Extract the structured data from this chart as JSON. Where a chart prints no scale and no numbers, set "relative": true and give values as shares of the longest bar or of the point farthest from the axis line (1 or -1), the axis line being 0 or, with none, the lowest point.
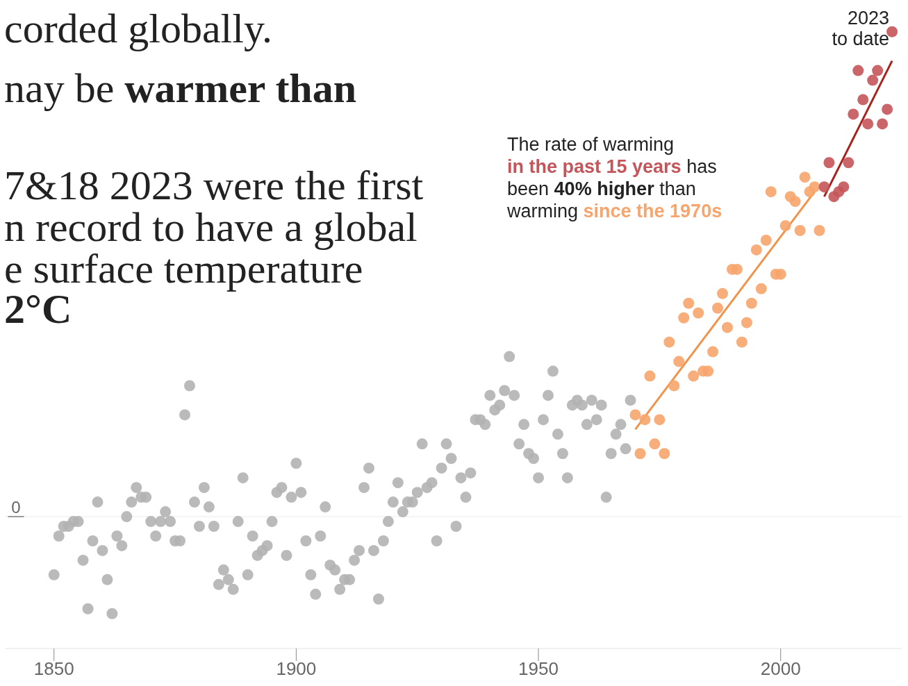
{
  "chart_data": {
    "type": "scatter",
    "relative": true,
    "marker": "circle",
    "xlim": [
      1840,
      2025
    ],
    "xticks": [
      1850,
      1900,
      1950,
      2000
    ],
    "ref_lines": [
      {
        "axis": "y",
        "value": 0,
        "label": "0"
      }
    ],
    "annotations": [
      "corded globally.",
      "nay be",
      "warmer than",
      "7&18 2023 were the first",
      "n record to have a global",
      "e surface temperature",
      "2°C",
      "2023",
      "to date",
      "The rate of warming",
      "in the past 15 years",
      "has",
      "been",
      "40% higher",
      "than",
      "warming",
      "since the 1970s"
    ],
    "series": [
      {
        "color": "#b3b3b3",
        "x": [
          1850,
          1851,
          1852,
          1853,
          1854,
          1855,
          1856,
          1857,
          1858,
          1859,
          1860,
          1861,
          1862,
          1863,
          1864,
          1865,
          1866,
          1867,
          1868,
          1869,
          1870,
          1871,
          1872,
          1873,
          1874,
          1875,
          1876,
          1877,
          1878,
          1879,
          1880,
          1881,
          1882,
          1883,
          1884,
          1885,
          1886,
          1887,
          1888,
          1889,
          1890,
          1891,
          1892,
          1893,
          1894,
          1895,
          1896,
          1897,
          1898,
          1899,
          1900,
          1901,
          1902,
          1903,
          1904,
          1905,
          1906,
          1907,
          1908,
          1909,
          1910,
          1911,
          1912,
          1913,
          1914,
          1915,
          1916,
          1917,
          1918,
          1919,
          1920,
          1921,
          1922,
          1923,
          1924,
          1925,
          1926,
          1927,
          1928,
          1929,
          1930,
          1931,
          1932,
          1933,
          1934,
          1935,
          1936,
          1937,
          1938,
          1939,
          1940,
          1941,
          1942,
          1943,
          1944,
          1945,
          1946,
          1947,
          1948,
          1949,
          1950,
          1951,
          1952,
          1953,
          1954,
          1955,
          1956,
          1957,
          1958,
          1959,
          1960,
          1961,
          1962,
          1963,
          1964,
          1965,
          1966,
          1967,
          1968,
          1969
        ],
        "values": [
          -0.12,
          -0.04,
          -0.02,
          -0.02,
          -0.01,
          -0.01,
          -0.09,
          -0.19,
          -0.05,
          0.03,
          -0.07,
          -0.13,
          -0.2,
          -0.04,
          -0.06,
          0.0,
          0.03,
          0.06,
          0.04,
          0.04,
          -0.01,
          -0.04,
          -0.01,
          0.01,
          -0.01,
          -0.05,
          -0.05,
          0.21,
          0.27,
          0.03,
          -0.02,
          0.06,
          0.02,
          -0.02,
          -0.14,
          -0.11,
          -0.13,
          -0.15,
          -0.01,
          0.08,
          -0.12,
          -0.04,
          -0.08,
          -0.07,
          -0.06,
          -0.01,
          0.05,
          0.06,
          -0.08,
          0.04,
          0.11,
          0.05,
          -0.05,
          -0.12,
          -0.16,
          -0.04,
          0.02,
          -0.1,
          -0.11,
          -0.15,
          -0.13,
          -0.13,
          -0.09,
          -0.07,
          0.06,
          0.1,
          -0.07,
          -0.17,
          -0.05,
          -0.01,
          0.03,
          0.07,
          0.01,
          0.03,
          0.03,
          0.05,
          0.15,
          0.06,
          0.07,
          -0.05,
          0.1,
          0.15,
          0.12,
          -0.02,
          0.08,
          0.04,
          0.09,
          0.2,
          0.2,
          0.19,
          0.25,
          0.22,
          0.23,
          0.26,
          0.33,
          0.25,
          0.15,
          0.19,
          0.13,
          0.12,
          0.08,
          0.2,
          0.25,
          0.3,
          0.17,
          0.13,
          0.08,
          0.23,
          0.24,
          0.23,
          0.19,
          0.24,
          0.2,
          0.23,
          0.04,
          0.13,
          0.17,
          0.19,
          0.14,
          0.24
        ]
      },
      {
        "color": "#f7a56c",
        "x": [
          1970,
          1971,
          1972,
          1973,
          1974,
          1975,
          1976,
          1977,
          1978,
          1979,
          1980,
          1981,
          1982,
          1983,
          1984,
          1985,
          1986,
          1987,
          1988,
          1989,
          1990,
          1991,
          1992,
          1993,
          1994,
          1995,
          1996,
          1997,
          1998,
          1999,
          2000,
          2001,
          2002,
          2003,
          2004,
          2005,
          2006,
          2007,
          2008
        ],
        "values": [
          0.21,
          0.13,
          0.2,
          0.29,
          0.15,
          0.2,
          0.13,
          0.36,
          0.27,
          0.32,
          0.41,
          0.44,
          0.29,
          0.42,
          0.3,
          0.3,
          0.34,
          0.43,
          0.46,
          0.39,
          0.51,
          0.51,
          0.36,
          0.4,
          0.44,
          0.55,
          0.47,
          0.57,
          0.67,
          0.5,
          0.5,
          0.6,
          0.66,
          0.65,
          0.59,
          0.7,
          0.67,
          0.68,
          0.59
        ]
      },
      {
        "color": "#c4555a",
        "x": [
          2009,
          2010,
          2011,
          2012,
          2013,
          2014,
          2015,
          2016,
          2017,
          2018,
          2019,
          2020,
          2021,
          2022,
          2023
        ],
        "values": [
          0.68,
          0.73,
          0.66,
          0.67,
          0.68,
          0.73,
          0.83,
          0.92,
          0.86,
          0.81,
          0.9,
          0.92,
          0.81,
          0.84,
          1.0
        ]
      },
      {
        "type": "line",
        "marker": "none",
        "color": "#f0944d",
        "x": [
          1970,
          2007
        ],
        "values": [
          0.18,
          0.67
        ]
      },
      {
        "type": "line",
        "marker": "none",
        "color": "#a8201a",
        "x": [
          2009,
          2023
        ],
        "values": [
          0.66,
          0.94
        ]
      }
    ]
  }
}
